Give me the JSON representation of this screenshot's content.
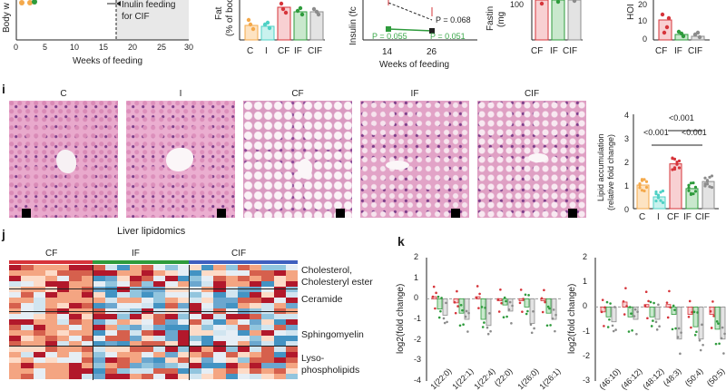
{
  "panel_a": {
    "ylabel": "Body w",
    "xlabel": "Weeks of feeding",
    "xticks": [
      "0",
      "5",
      "10",
      "15",
      "20",
      "25",
      "30"
    ],
    "annotation_line1": "Inulin feeding",
    "annotation_line2": "for CIF"
  },
  "panel_fat": {
    "ylabel_line1": "Fat",
    "ylabel_line2": "(% of boc",
    "categories": [
      "C",
      "I",
      "CF",
      "IF",
      "CIF"
    ],
    "colors": [
      "#f4a94b",
      "#4fd1c5",
      "#d6343a",
      "#2e9b3c",
      "#8c8c8c"
    ],
    "values": [
      12,
      11,
      23,
      20,
      20
    ]
  },
  "panel_insulin": {
    "ylabel": "Insulin (fc",
    "xlabel": "Weeks of feeding",
    "xticks": [
      "14",
      "26"
    ],
    "p_black": "P = 0.068",
    "p_green1": "P = 0.055",
    "p_green2": "P = 0.051"
  },
  "panel_fasting": {
    "ylabel_line1": "Fastin",
    "ylabel_line2": "(mg",
    "ytick": "100",
    "categories": [
      "CF",
      "IF",
      "CIF"
    ]
  },
  "panel_homa": {
    "ylabel": "HOI",
    "yticks": [
      "20",
      "10",
      "0"
    ],
    "categories": [
      "CF",
      "IF",
      "CIF"
    ]
  },
  "panel_i": {
    "label": "i",
    "titles": [
      "C",
      "I",
      "CF",
      "IF",
      "CIF"
    ],
    "ylabel_line1": "Lipid accumulation",
    "ylabel_line2": "(relative fold change)",
    "yticks": [
      "4",
      "3",
      "2",
      "1",
      "0"
    ],
    "categories": [
      "C",
      "I",
      "CF",
      "IF",
      "CIF"
    ],
    "p_top": "<0.001",
    "p_mid_left": "<0.001",
    "p_mid_right": "<0.001",
    "chart_data": {
      "type": "bar",
      "categories": [
        "C",
        "I",
        "CF",
        "IF",
        "CIF"
      ],
      "values": [
        1.0,
        0.5,
        1.9,
        0.85,
        1.15
      ],
      "ylim": [
        0,
        4
      ],
      "ylabel": "Lipid accumulation (relative fold change)"
    }
  },
  "panel_j": {
    "label": "j",
    "title": "Liver lipidomics",
    "groups": [
      "CF",
      "IF",
      "CIF"
    ],
    "group_colors": [
      "#d6343a",
      "#2e9b3c",
      "#3f5fbf"
    ],
    "row_labels": [
      "Cholesterol,",
      "Cholesteryl ester",
      "Ceramide",
      "Sphingomyelin",
      "Lyso-",
      "phospholipids"
    ]
  },
  "panel_k": {
    "label": "k",
    "ylabel_left": "log2(fold change)",
    "ylabel_right": "log2(fold change)",
    "yticks_left": [
      "2",
      "1",
      "0",
      "-1",
      "-2",
      "-3",
      "-4"
    ],
    "yticks_right": [
      "2",
      "1",
      "0",
      "-1",
      "-2",
      "-3"
    ],
    "xticks_left": [
      "1(22:0)",
      "1(22:1)",
      "1(22:4)",
      "(22:0)",
      "1(26:0)",
      "1(26:1)"
    ],
    "xticks_right": [
      "(46:10)",
      "(46:12)",
      "(48:12)",
      "(48:3)",
      "(50:4)",
      "(50:5)"
    ],
    "chart_data": [
      {
        "type": "bar",
        "series": [
          {
            "name": "CF",
            "values": [
              0.1,
              -0.2,
              0.1,
              -0.1,
              -0.1,
              -0.1
            ]
          },
          {
            "name": "IF",
            "values": [
              -0.5,
              -0.7,
              -1.0,
              -0.3,
              -0.4,
              -0.7
            ]
          },
          {
            "name": "CIF",
            "values": [
              -0.8,
              -1.0,
              -1.3,
              -0.6,
              -1.2,
              -1.0
            ]
          }
        ],
        "ylim": [
          -4,
          2
        ]
      },
      {
        "type": "bar",
        "series": [
          {
            "name": "CF",
            "values": [
              -0.2,
              0.2,
              0.1,
              0.1,
              -0.3,
              -0.3
            ]
          },
          {
            "name": "IF",
            "values": [
              -0.4,
              -0.4,
              -0.4,
              -0.3,
              -0.8,
              -0.9
            ]
          },
          {
            "name": "CIF",
            "values": [
              -0.6,
              -0.5,
              -0.5,
              -1.3,
              -1.3,
              -1.3
            ]
          }
        ],
        "ylim": [
          -3,
          2
        ]
      }
    ]
  }
}
